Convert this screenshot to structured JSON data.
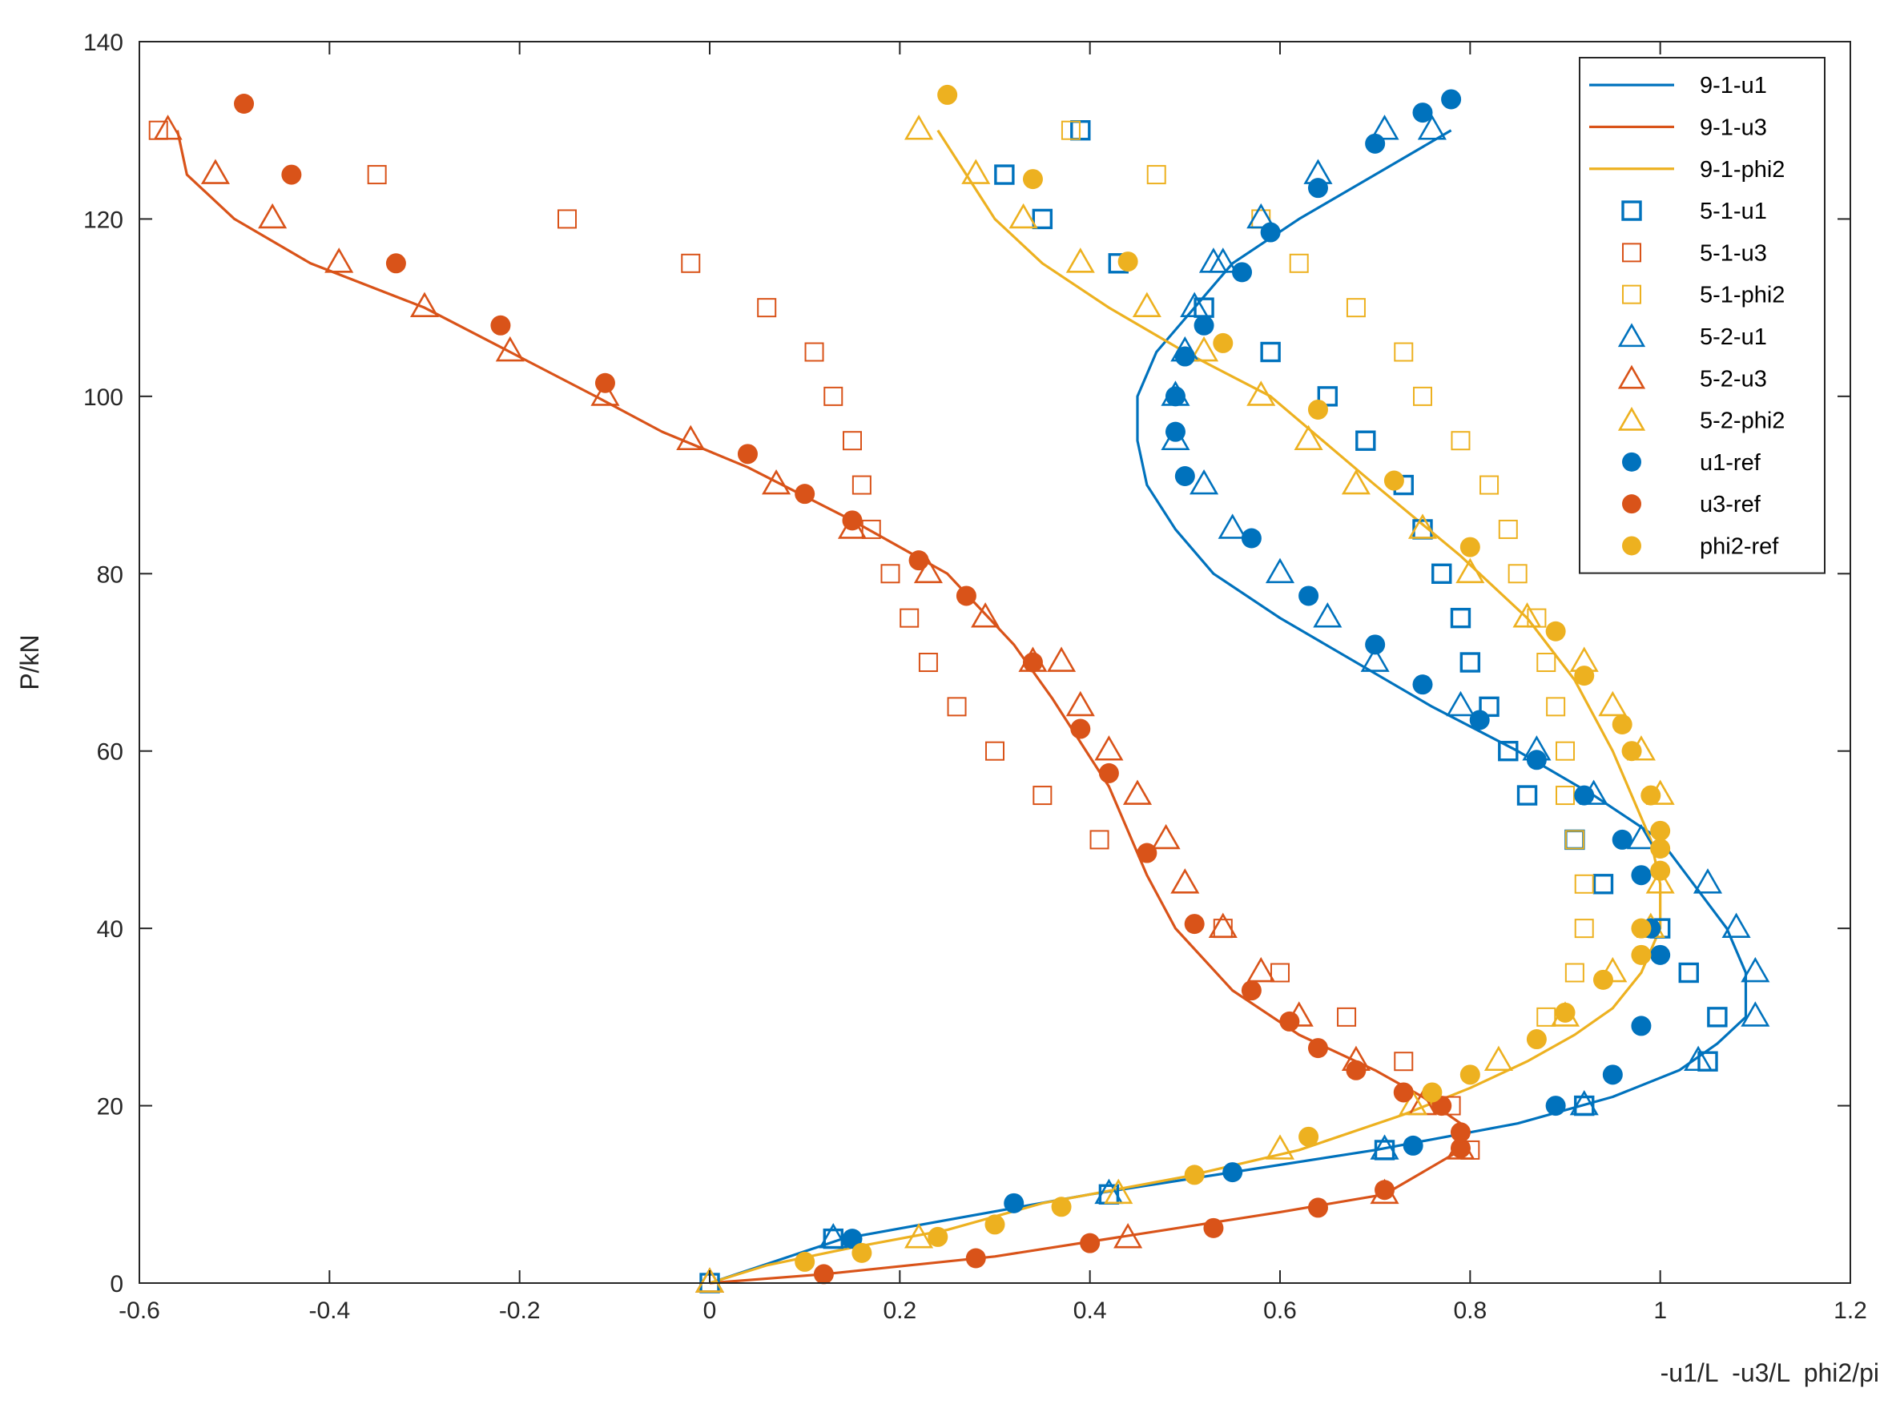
{
  "chart_data": {
    "type": "line",
    "title": "",
    "xlabel": "-u1/L  -u3/L  phi2/pi",
    "ylabel": "P/kN",
    "xlim": [
      -0.6,
      1.2
    ],
    "ylim": [
      0,
      140
    ],
    "xticks": [
      -0.6,
      -0.4,
      -0.2,
      0,
      0.2,
      0.4,
      0.6,
      0.8,
      1,
      1.2
    ],
    "yticks": [
      0,
      20,
      40,
      60,
      80,
      100,
      120,
      140
    ],
    "xtick_labels": [
      "-0.6",
      "-0.4",
      "-0.2",
      "0",
      "0.2",
      "0.4",
      "0.6",
      "0.8",
      "1",
      "1.2"
    ],
    "ytick_labels": [
      "0",
      "20",
      "40",
      "60",
      "80",
      "100",
      "120",
      "140"
    ],
    "grid": false,
    "legend_position": "top-right",
    "colors": {
      "blue": "#0072BD",
      "red": "#D95319",
      "orange": "#EDB120",
      "axis": "#262626"
    },
    "series": [
      {
        "name": "9-1-u1",
        "marker": "line",
        "color": "#0072BD",
        "x": [
          0,
          0.14,
          0.4,
          0.55,
          0.7,
          0.85,
          0.95,
          1.02,
          1.06,
          1.09,
          1.09,
          1.07,
          1.0,
          0.93,
          0.85,
          0.76,
          0.68,
          0.6,
          0.53,
          0.49,
          0.46,
          0.45,
          0.45,
          0.47,
          0.51,
          0.55,
          0.62,
          0.7,
          0.78
        ],
        "y": [
          0,
          5,
          10,
          12.5,
          15,
          18,
          21,
          24,
          27,
          30,
          35,
          40,
          50,
          55,
          60,
          65,
          70,
          75,
          80,
          85,
          90,
          95,
          100,
          105,
          110,
          115,
          120,
          125,
          130
        ]
      },
      {
        "name": "9-1-u3",
        "marker": "line",
        "color": "#D95319",
        "x": [
          0,
          0.12,
          0.3,
          0.42,
          0.6,
          0.71,
          0.79,
          0.79,
          0.75,
          0.7,
          0.62,
          0.55,
          0.49,
          0.46,
          0.42,
          0.36,
          0.32,
          0.25,
          0.15,
          0.04,
          -0.05,
          -0.12,
          -0.21,
          -0.3,
          -0.42,
          -0.5,
          -0.55,
          -0.56
        ],
        "y": [
          0,
          1,
          3,
          5,
          8,
          10,
          15,
          18,
          21,
          24,
          28,
          33,
          40,
          46,
          56,
          66,
          72,
          80,
          86,
          92,
          96,
          100,
          105,
          110,
          115,
          120,
          125,
          130
        ]
      },
      {
        "name": "9-1-phi2",
        "marker": "line",
        "color": "#EDB120",
        "x": [
          0,
          0.06,
          0.15,
          0.25,
          0.35,
          0.5,
          0.62,
          0.73,
          0.8,
          0.86,
          0.91,
          0.95,
          0.98,
          1.0,
          1.0,
          0.99,
          0.97,
          0.95,
          0.91,
          0.86,
          0.79,
          0.7,
          0.59,
          0.5,
          0.42,
          0.35,
          0.3,
          0.24
        ],
        "y": [
          0,
          2,
          4,
          6,
          9,
          12,
          15,
          19,
          22,
          25,
          28,
          31,
          35,
          40,
          45,
          50,
          55,
          60,
          68,
          75,
          82,
          90,
          100,
          105,
          110,
          115,
          120,
          130
        ]
      },
      {
        "name": "5-1-u1",
        "marker": "square",
        "color": "#0072BD",
        "x": [
          0,
          0.13,
          0.42,
          0.71,
          0.92,
          1.05,
          1.06,
          1.03,
          1.0,
          0.94,
          0.91,
          0.86,
          0.84,
          0.82,
          0.8,
          0.79,
          0.77,
          0.75,
          0.73,
          0.69,
          0.65,
          0.59,
          0.52,
          0.43,
          0.35,
          0.31,
          0.39
        ],
        "y": [
          0,
          5,
          10,
          15,
          20,
          25,
          30,
          35,
          40,
          45,
          50,
          55,
          60,
          65,
          70,
          75,
          80,
          85,
          90,
          95,
          100,
          105,
          110,
          115,
          120,
          125,
          130
        ]
      },
      {
        "name": "5-1-u3",
        "marker": "square",
        "color": "#D95319",
        "x": [
          -0.58,
          -0.35,
          -0.15,
          -0.02,
          0.06,
          0.11,
          0.13,
          0.15,
          0.16,
          0.17,
          0.19,
          0.21,
          0.23,
          0.26,
          0.3,
          0.35,
          0.41,
          0.54,
          0.6,
          0.67,
          0.73,
          0.78,
          0.8
        ],
        "y": [
          130,
          125,
          120,
          115,
          110,
          105,
          100,
          95,
          90,
          85,
          80,
          75,
          70,
          65,
          60,
          55,
          50,
          40,
          35,
          30,
          25,
          20,
          15
        ]
      },
      {
        "name": "5-1-phi2",
        "marker": "square",
        "color": "#EDB120",
        "x": [
          0.38,
          0.47,
          0.58,
          0.62,
          0.68,
          0.73,
          0.75,
          0.79,
          0.82,
          0.84,
          0.85,
          0.87,
          0.88,
          0.89,
          0.9,
          0.9,
          0.91,
          0.92,
          0.92,
          0.91,
          0.88
        ],
        "y": [
          130,
          125,
          120,
          115,
          110,
          105,
          100,
          95,
          90,
          85,
          80,
          75,
          70,
          65,
          60,
          55,
          50,
          45,
          40,
          35,
          30
        ]
      },
      {
        "name": "5-2-u1",
        "marker": "triangle",
        "color": "#0072BD",
        "x": [
          0,
          0.13,
          0.42,
          0.71,
          0.92,
          1.04,
          1.1,
          1.1,
          1.08,
          1.05,
          0.98,
          0.93,
          0.87,
          0.79,
          0.7,
          0.65,
          0.6,
          0.55,
          0.52,
          0.49,
          0.49,
          0.5,
          0.51,
          0.53,
          0.54,
          0.58,
          0.64,
          0.71,
          0.76
        ],
        "y": [
          0,
          5,
          10,
          15,
          20,
          25,
          30,
          35,
          40,
          45,
          50,
          55,
          60,
          65,
          70,
          75,
          80,
          85,
          90,
          95,
          100,
          105,
          110,
          115,
          115,
          120,
          125,
          130,
          130
        ]
      },
      {
        "name": "5-2-u3",
        "marker": "triangle",
        "color": "#D95319",
        "x": [
          0,
          0.44,
          0.71,
          0.79,
          0.75,
          0.68,
          0.62,
          0.58,
          0.54,
          0.5,
          0.48,
          0.45,
          0.42,
          0.39,
          0.37,
          0.34,
          0.29,
          0.23,
          0.15,
          0.07,
          -0.02,
          -0.11,
          -0.21,
          -0.3,
          -0.39,
          -0.46,
          -0.52,
          -0.57
        ],
        "y": [
          0,
          5,
          10,
          15,
          20,
          25,
          30,
          35,
          40,
          45,
          50,
          55,
          60,
          65,
          70,
          70,
          75,
          80,
          85,
          90,
          95,
          100,
          105,
          110,
          115,
          120,
          125,
          130
        ]
      },
      {
        "name": "5-2-phi2",
        "marker": "triangle",
        "color": "#EDB120",
        "x": [
          0,
          0.22,
          0.43,
          0.6,
          0.74,
          0.83,
          0.9,
          0.95,
          0.99,
          1.0,
          1.0,
          0.98,
          0.95,
          0.92,
          0.86,
          0.8,
          0.75,
          0.68,
          0.63,
          0.58,
          0.52,
          0.46,
          0.39,
          0.33,
          0.28,
          0.22
        ],
        "y": [
          0,
          5,
          10,
          15,
          20,
          25,
          30,
          35,
          40,
          45,
          55,
          60,
          65,
          70,
          75,
          80,
          85,
          90,
          95,
          100,
          105,
          110,
          115,
          120,
          125,
          130
        ]
      },
      {
        "name": "u1-ref",
        "marker": "circle",
        "color": "#0072BD",
        "x": [
          0.15,
          0.32,
          0.55,
          0.74,
          0.89,
          0.95,
          0.98,
          1.0,
          0.99,
          0.98,
          0.96,
          0.92,
          0.87,
          0.81,
          0.75,
          0.7,
          0.63,
          0.57,
          0.5,
          0.49,
          0.49,
          0.5,
          0.52,
          0.56,
          0.59,
          0.64,
          0.7,
          0.75,
          0.78
        ],
        "y": [
          5,
          9,
          12.5,
          15.5,
          20,
          23.5,
          29,
          37,
          40,
          46,
          50,
          55,
          59,
          63.5,
          67.5,
          72,
          77.5,
          84,
          91,
          96,
          100,
          104.5,
          108,
          114,
          118.5,
          123.5,
          128.5,
          132,
          133.5
        ]
      },
      {
        "name": "u3-ref",
        "marker": "circle",
        "color": "#D95319",
        "x": [
          0.12,
          0.28,
          0.4,
          0.53,
          0.64,
          0.71,
          0.79,
          0.79,
          0.77,
          0.73,
          0.68,
          0.64,
          0.61,
          0.57,
          0.51,
          0.46,
          0.42,
          0.39,
          0.34,
          0.27,
          0.22,
          0.15,
          0.1,
          0.04,
          -0.11,
          -0.22,
          -0.33,
          -0.44,
          -0.49
        ],
        "y": [
          1,
          2.8,
          4.5,
          6.2,
          8.5,
          10.5,
          15.2,
          17,
          20,
          21.5,
          24,
          26.5,
          29.5,
          33,
          40.5,
          48.5,
          57.5,
          62.5,
          70,
          77.5,
          81.5,
          86,
          89,
          93.5,
          101.5,
          108,
          115,
          125,
          133
        ]
      },
      {
        "name": "phi2-ref",
        "marker": "circle",
        "color": "#EDB120",
        "x": [
          0.1,
          0.16,
          0.24,
          0.3,
          0.37,
          0.51,
          0.63,
          0.76,
          0.8,
          0.87,
          0.9,
          0.94,
          0.98,
          0.98,
          1.0,
          1.0,
          1.0,
          0.99,
          0.97,
          0.96,
          0.92,
          0.89,
          0.8,
          0.72,
          0.64,
          0.54,
          0.44,
          0.34,
          0.25
        ],
        "y": [
          2.4,
          3.4,
          5.2,
          6.6,
          8.6,
          12.2,
          16.5,
          21.5,
          23.5,
          27.5,
          30.5,
          34.2,
          37,
          40,
          46.5,
          49,
          51,
          55,
          60,
          63,
          68.5,
          73.5,
          83,
          90.5,
          98.5,
          106,
          115.2,
          124.5,
          134
        ]
      }
    ]
  }
}
